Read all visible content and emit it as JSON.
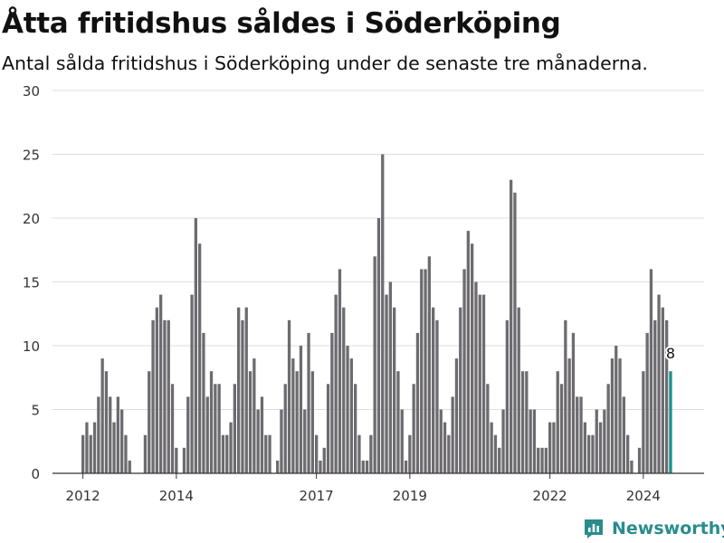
{
  "title": "Åtta fritidshus såldes i Söderköping",
  "subtitle": "Antal sålda fritidshus i Söderköping under de senaste tre månaderna.",
  "brand": {
    "name": "Newsworthy",
    "color": "#2a8c8c",
    "icon": "newsworthy-logo-icon"
  },
  "colors": {
    "bar": "#6d6b70",
    "highlight": "#1a9188",
    "grid": "#dddddd",
    "axis": "#333333"
  },
  "chart_data": {
    "type": "bar",
    "title": "Åtta fritidshus såldes i Söderköping",
    "subtitle": "Antal sålda fritidshus i Söderköping under de senaste tre månaderna.",
    "xlabel": "",
    "ylabel": "",
    "ylim": [
      0,
      30
    ],
    "yticks": [
      0,
      5,
      10,
      15,
      20,
      25,
      30
    ],
    "xticks": [
      "2012",
      "2014",
      "2017",
      "2019",
      "2022",
      "2024"
    ],
    "grid": true,
    "start_month": "2012-01",
    "frequency": "monthly",
    "values": [
      3,
      4,
      3,
      4,
      6,
      9,
      8,
      6,
      4,
      6,
      5,
      3,
      1,
      0,
      0,
      0,
      3,
      8,
      12,
      13,
      14,
      12,
      12,
      7,
      2,
      0,
      2,
      6,
      14,
      20,
      18,
      11,
      6,
      8,
      7,
      7,
      3,
      3,
      4,
      7,
      13,
      12,
      13,
      8,
      9,
      5,
      6,
      3,
      3,
      0,
      1,
      5,
      7,
      12,
      9,
      8,
      10,
      5,
      11,
      8,
      3,
      1,
      2,
      7,
      11,
      14,
      16,
      13,
      10,
      9,
      7,
      3,
      1,
      1,
      3,
      17,
      20,
      25,
      14,
      15,
      13,
      8,
      5,
      1,
      3,
      7,
      11,
      16,
      16,
      17,
      13,
      12,
      5,
      4,
      3,
      6,
      9,
      13,
      16,
      19,
      18,
      15,
      14,
      14,
      7,
      4,
      3,
      2,
      5,
      12,
      23,
      22,
      13,
      8,
      8,
      5,
      5,
      2,
      2,
      2,
      4,
      4,
      8,
      7,
      12,
      9,
      11,
      6,
      6,
      4,
      3,
      3,
      5,
      4,
      5,
      7,
      9,
      10,
      9,
      6,
      3,
      1,
      0,
      2,
      8,
      11,
      16,
      12,
      14,
      13,
      12,
      8
    ],
    "highlight": {
      "label": "8",
      "value": 8
    }
  }
}
